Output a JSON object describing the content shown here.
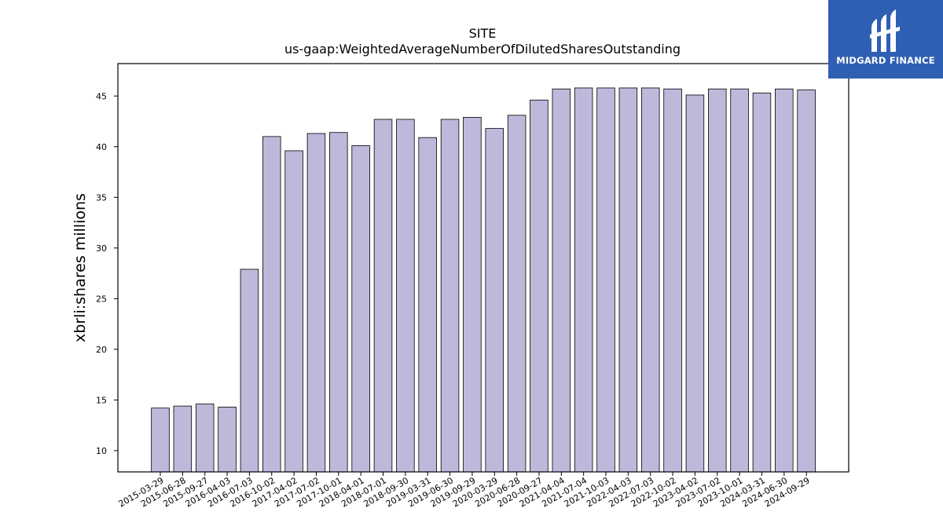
{
  "chart_data": {
    "type": "bar",
    "title": "SITE",
    "subtitle": "us-gaap:WeightedAverageNumberOfDilutedSharesOutstanding",
    "xlabel": "",
    "ylabel": "xbrli:shares millions",
    "ylim": [
      7.9,
      48.2
    ],
    "yticks": [
      10,
      15,
      20,
      25,
      30,
      35,
      40,
      45
    ],
    "grid": false,
    "bar_color": "#bcb9da",
    "bar_edge_color": "#000000",
    "categories": [
      "2015-03-29",
      "2015-06-28",
      "2015-09-27",
      "2016-04-03",
      "2016-07-03",
      "2016-10-02",
      "2017-04-02",
      "2017-07-02",
      "2017-10-01",
      "2018-04-01",
      "2018-07-01",
      "2018-09-30",
      "2019-03-31",
      "2019-06-30",
      "2019-09-29",
      "2020-03-29",
      "2020-06-28",
      "2020-09-27",
      "2021-04-04",
      "2021-07-04",
      "2021-10-03",
      "2022-04-03",
      "2022-07-03",
      "2022-10-02",
      "2023-04-02",
      "2023-07-02",
      "2023-10-01",
      "2024-03-31",
      "2024-06-30",
      "2024-09-29"
    ],
    "values": [
      14.2,
      14.4,
      14.6,
      14.3,
      27.9,
      41.0,
      39.6,
      41.3,
      41.4,
      40.1,
      42.7,
      42.7,
      40.9,
      42.7,
      42.9,
      41.8,
      43.1,
      44.6,
      45.7,
      45.8,
      45.8,
      45.8,
      45.8,
      45.7,
      45.1,
      45.7,
      45.7,
      45.3,
      45.7,
      45.6
    ]
  },
  "logo": {
    "text": "MIDGARD FINANCE",
    "color": "#2f5fb3"
  }
}
